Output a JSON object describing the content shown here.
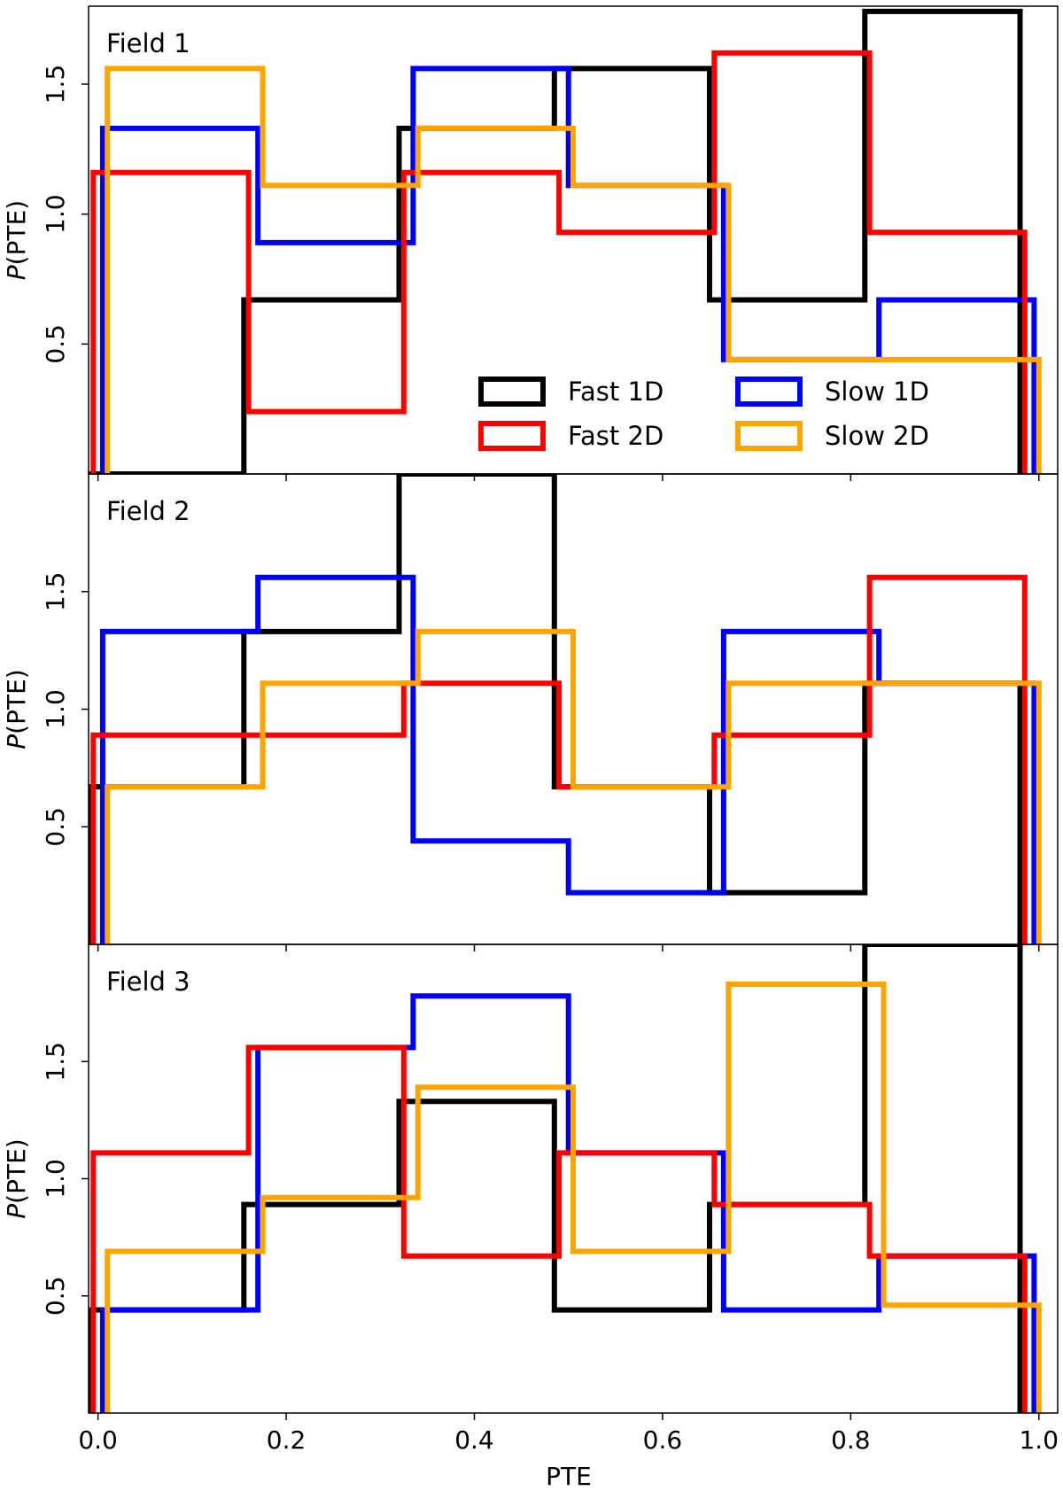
{
  "figure": {
    "xlabel": "PTE",
    "ylabel_italic": "P",
    "ylabel_rest": "(PTE)"
  },
  "legend": {
    "placement": "lower-right of first panel",
    "entries": [
      {
        "label": "Fast 1D",
        "color": "#000000"
      },
      {
        "label": "Slow 1D",
        "color": "#0000ff"
      },
      {
        "label": "Fast 2D",
        "color": "#ff0000"
      },
      {
        "label": "Slow 2D",
        "color": "#ffa500"
      }
    ]
  },
  "chart_data": [
    {
      "type": "step-histogram",
      "title": "Field 1",
      "xlabel": "PTE",
      "ylabel": "P(PTE)",
      "xlim": [
        -0.01,
        1.02
      ],
      "ylim": [
        0,
        1.8
      ],
      "xticks": [
        "0.0",
        "0.2",
        "0.4",
        "0.6",
        "0.8",
        "1.0"
      ],
      "yticks": [
        "0.5",
        "1.0",
        "1.5"
      ],
      "series": [
        {
          "name": "Fast 1D",
          "color": "#000000",
          "edges": [
            -0.01,
            0.155,
            0.32,
            0.485,
            0.65,
            0.815,
            0.98
          ],
          "values": [
            0.0,
            0.67,
            1.33,
            1.56,
            0.67,
            1.78
          ]
        },
        {
          "name": "Slow 1D",
          "color": "#0000ff",
          "edges": [
            0.005,
            0.17,
            0.335,
            0.5,
            0.665,
            0.83,
            0.995
          ],
          "values": [
            1.33,
            0.89,
            1.56,
            1.11,
            0.44,
            0.67
          ]
        },
        {
          "name": "Fast 2D",
          "color": "#ff0000",
          "edges": [
            -0.005,
            0.16,
            0.325,
            0.49,
            0.655,
            0.82,
            0.985
          ],
          "values": [
            1.16,
            0.24,
            1.16,
            0.93,
            1.62,
            0.93
          ]
        },
        {
          "name": "Slow 2D",
          "color": "#ffa500",
          "edges": [
            0.01,
            0.175,
            0.34,
            0.505,
            0.67,
            0.835,
            1.0
          ],
          "values": [
            1.56,
            1.11,
            1.33,
            1.11,
            0.44,
            0.44
          ]
        }
      ]
    },
    {
      "type": "step-histogram",
      "title": "Field 2",
      "xlabel": "PTE",
      "ylabel": "P(PTE)",
      "xlim": [
        -0.01,
        1.02
      ],
      "ylim": [
        0,
        2.0
      ],
      "xticks": [
        "0.0",
        "0.2",
        "0.4",
        "0.6",
        "0.8",
        "1.0"
      ],
      "yticks": [
        "0.5",
        "1.0",
        "1.5"
      ],
      "series": [
        {
          "name": "Fast 1D",
          "color": "#000000",
          "edges": [
            -0.01,
            0.155,
            0.32,
            0.485,
            0.65,
            0.815,
            0.98
          ],
          "values": [
            0.67,
            1.33,
            2.0,
            0.67,
            0.22,
            1.11
          ]
        },
        {
          "name": "Slow 1D",
          "color": "#0000ff",
          "edges": [
            0.005,
            0.17,
            0.335,
            0.5,
            0.665,
            0.83,
            0.995
          ],
          "values": [
            1.33,
            1.56,
            0.44,
            0.22,
            1.33,
            1.11
          ]
        },
        {
          "name": "Fast 2D",
          "color": "#ff0000",
          "edges": [
            -0.005,
            0.16,
            0.325,
            0.49,
            0.655,
            0.82,
            0.985
          ],
          "values": [
            0.89,
            0.89,
            1.11,
            0.67,
            0.89,
            1.56
          ]
        },
        {
          "name": "Slow 2D",
          "color": "#ffa500",
          "edges": [
            0.01,
            0.175,
            0.34,
            0.505,
            0.67,
            0.835,
            1.0
          ],
          "values": [
            0.67,
            1.11,
            1.33,
            0.67,
            1.11,
            1.11
          ]
        }
      ]
    },
    {
      "type": "step-histogram",
      "title": "Field 3",
      "xlabel": "PTE",
      "ylabel": "P(PTE)",
      "xlim": [
        -0.01,
        1.02
      ],
      "ylim": [
        0,
        2.0
      ],
      "xticks": [
        "0.0",
        "0.2",
        "0.4",
        "0.6",
        "0.8",
        "1.0"
      ],
      "yticks": [
        "0.5",
        "1.0",
        "1.5"
      ],
      "series": [
        {
          "name": "Fast 1D",
          "color": "#000000",
          "edges": [
            -0.01,
            0.155,
            0.32,
            0.485,
            0.65,
            0.815,
            0.98
          ],
          "values": [
            0.44,
            0.89,
            1.33,
            0.44,
            0.89,
            2.0
          ]
        },
        {
          "name": "Slow 1D",
          "color": "#0000ff",
          "edges": [
            0.005,
            0.17,
            0.335,
            0.5,
            0.665,
            0.83,
            0.995
          ],
          "values": [
            0.44,
            1.56,
            1.78,
            1.11,
            0.44,
            0.67
          ]
        },
        {
          "name": "Fast 2D",
          "color": "#ff0000",
          "edges": [
            -0.005,
            0.16,
            0.325,
            0.49,
            0.655,
            0.82,
            0.985
          ],
          "values": [
            1.11,
            1.56,
            0.67,
            1.11,
            0.89,
            0.67
          ]
        },
        {
          "name": "Slow 2D",
          "color": "#ffa500",
          "edges": [
            0.01,
            0.175,
            0.34,
            0.505,
            0.67,
            0.835,
            1.0
          ],
          "values": [
            0.69,
            0.92,
            1.39,
            0.69,
            1.83,
            0.46
          ]
        }
      ]
    }
  ]
}
